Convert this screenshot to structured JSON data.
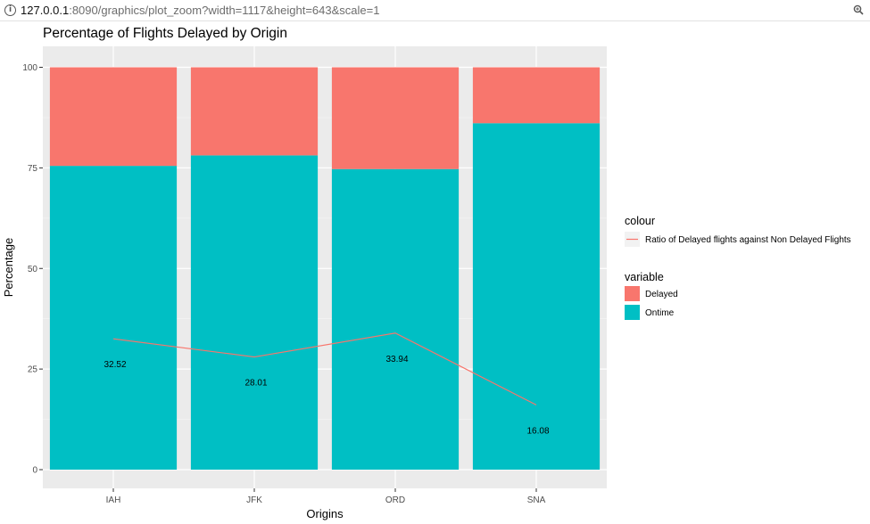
{
  "browser": {
    "url_host": "127.0.0.1",
    "url_path": ":8090/graphics/plot_zoom?width=1117&height=643&scale=1",
    "info_icon": "info-circle-icon",
    "zoom_icon": "zoom-icon"
  },
  "chart_data": {
    "type": "bar",
    "title": "Percentage of Flights Delayed by Origin",
    "xlabel": "Origins",
    "ylabel": "Percentage",
    "categories": [
      "IAH",
      "JFK",
      "ORD",
      "SNA"
    ],
    "ylim": [
      0,
      100
    ],
    "yticks": [
      0,
      25,
      50,
      75,
      100
    ],
    "stacked": true,
    "grid": true,
    "series": [
      {
        "name": "Ontime",
        "color": "#00BFC4",
        "values": [
          75.5,
          78.1,
          74.7,
          86.1
        ]
      },
      {
        "name": "Delayed",
        "color": "#F8766D",
        "values": [
          24.5,
          21.9,
          25.3,
          13.9
        ]
      }
    ],
    "line": {
      "color": "#F8766D",
      "values": [
        32.52,
        28.01,
        33.94,
        16.08
      ],
      "labels": [
        "32.52",
        "28.01",
        "33.94",
        "16.08"
      ]
    },
    "legends": [
      {
        "title": "colour",
        "items": [
          "Ratio of Delayed flights against Non Delayed Flights"
        ]
      },
      {
        "title": "variable",
        "items": [
          "Delayed",
          "Ontime"
        ]
      }
    ],
    "legend_position": "right"
  }
}
